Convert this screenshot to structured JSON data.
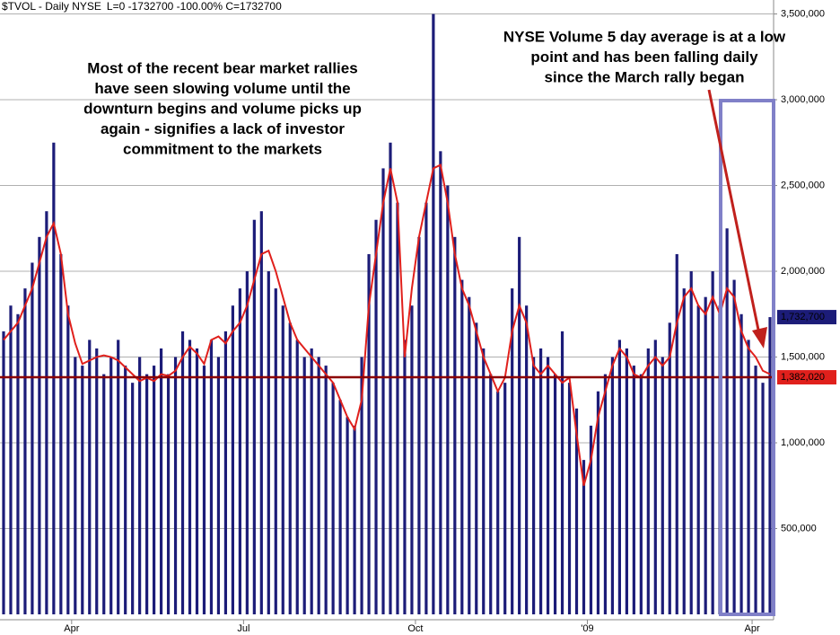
{
  "chart_data": {
    "type": "bar",
    "header": [
      "$TVOL - Daily  NYSE",
      "L=0  -1732700  -100.00%  C=1732700"
    ],
    "annotations": [
      [
        "Most of the recent bear market rallies",
        "have seen slowing volume until the",
        "downturn begins and volume picks up",
        "again - signifies a lack of investor",
        "commitment to the markets"
      ],
      [
        "NYSE Volume 5 day average is at a low",
        "point and has been falling daily",
        "since the March rally began"
      ]
    ],
    "xlim": [
      0,
      108
    ],
    "xticks": [
      {
        "value": 10,
        "label": "Apr"
      },
      {
        "value": 34,
        "label": "Jul"
      },
      {
        "value": 58,
        "label": "Oct"
      },
      {
        "value": 82,
        "label": "'09"
      },
      {
        "value": 105,
        "label": "Apr"
      }
    ],
    "ylim": [
      0,
      3550000
    ],
    "yticks": [
      {
        "value": 500000,
        "label": "500,000"
      },
      {
        "value": 1000000,
        "label": "1,000,000"
      },
      {
        "value": 1500000,
        "label": "1,500,000"
      },
      {
        "value": 2000000,
        "label": "2,000,000"
      },
      {
        "value": 2500000,
        "label": "2,500,000"
      },
      {
        "value": 3000000,
        "label": "3,000,000"
      },
      {
        "value": 3500000,
        "label": "3,500,000"
      }
    ],
    "grid": true,
    "series": [
      {
        "name": "Volume",
        "type": "bar",
        "color": "#1c1c78",
        "values": [
          1650000,
          1800000,
          1750000,
          1900000,
          2050000,
          2200000,
          2350000,
          2750000,
          2100000,
          1800000,
          1500000,
          1450000,
          1600000,
          1550000,
          1400000,
          1500000,
          1600000,
          1450000,
          1350000,
          1500000,
          1400000,
          1450000,
          1550000,
          1400000,
          1500000,
          1650000,
          1600000,
          1550000,
          1450000,
          1600000,
          1500000,
          1650000,
          1800000,
          1900000,
          2000000,
          2300000,
          2350000,
          2000000,
          1900000,
          1800000,
          1700000,
          1600000,
          1500000,
          1550000,
          1500000,
          1450000,
          1350000,
          1250000,
          1150000,
          1100000,
          1500000,
          2100000,
          2300000,
          2600000,
          2750000,
          2400000,
          1600000,
          1800000,
          2200000,
          2400000,
          3500000,
          2700000,
          2500000,
          2200000,
          1950000,
          1850000,
          1700000,
          1550000,
          1400000,
          1300000,
          1350000,
          1900000,
          2200000,
          1800000,
          1500000,
          1550000,
          1500000,
          1400000,
          1650000,
          1350000,
          1200000,
          900000,
          1100000,
          1300000,
          1400000,
          1500000,
          1600000,
          1550000,
          1450000,
          1400000,
          1550000,
          1600000,
          1500000,
          1700000,
          2100000,
          1900000,
          2000000,
          1800000,
          1850000,
          2000000,
          1800000,
          2250000,
          1950000,
          1750000,
          1600000,
          1450000,
          1350000,
          1732700
        ]
      },
      {
        "name": "5 day average",
        "type": "line",
        "color": "#e0201c",
        "values": [
          1600000,
          1650000,
          1700000,
          1800000,
          1900000,
          2050000,
          2200000,
          2280000,
          2100000,
          1750000,
          1580000,
          1460000,
          1480000,
          1500000,
          1510000,
          1500000,
          1480000,
          1440000,
          1400000,
          1360000,
          1380000,
          1360000,
          1400000,
          1390000,
          1420000,
          1500000,
          1560000,
          1520000,
          1460000,
          1600000,
          1620000,
          1580000,
          1650000,
          1700000,
          1800000,
          1950000,
          2100000,
          2120000,
          2000000,
          1850000,
          1700000,
          1600000,
          1550000,
          1500000,
          1450000,
          1400000,
          1350000,
          1250000,
          1150000,
          1080000,
          1250000,
          1800000,
          2100000,
          2400000,
          2600000,
          2400000,
          1500000,
          1900000,
          2200000,
          2400000,
          2600000,
          2620000,
          2400000,
          2100000,
          1900000,
          1800000,
          1650000,
          1500000,
          1400000,
          1300000,
          1380000,
          1650000,
          1800000,
          1700000,
          1450000,
          1400000,
          1450000,
          1400000,
          1350000,
          1380000,
          1050000,
          750000,
          900000,
          1150000,
          1300000,
          1450000,
          1550000,
          1500000,
          1400000,
          1380000,
          1450000,
          1500000,
          1450000,
          1500000,
          1700000,
          1850000,
          1900000,
          1800000,
          1750000,
          1850000,
          1750000,
          1900000,
          1850000,
          1650000,
          1550000,
          1500000,
          1420000,
          1400000
        ]
      }
    ],
    "reference_line": {
      "value": 1382020,
      "label": "1,382,020",
      "color": "#8b0000"
    },
    "last_value": {
      "value": 1732700,
      "label": "1,732,700",
      "color": "#1c1c78"
    }
  }
}
